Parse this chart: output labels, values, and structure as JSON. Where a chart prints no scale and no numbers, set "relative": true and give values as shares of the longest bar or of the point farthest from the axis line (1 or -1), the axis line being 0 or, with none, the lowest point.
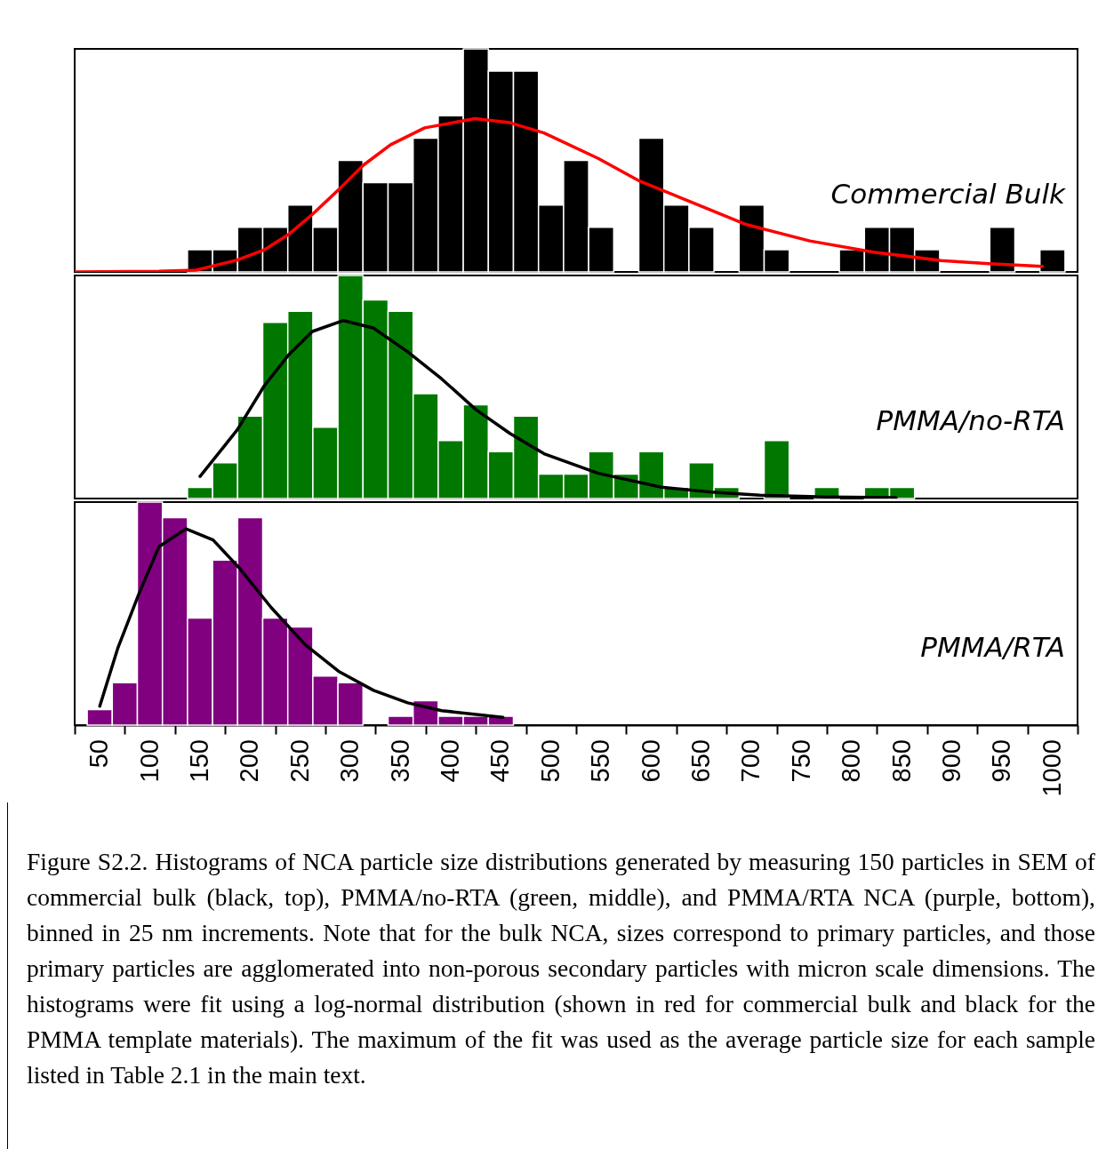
{
  "chart_data": [
    {
      "type": "histogram",
      "relative": true,
      "xlim": [
        25,
        1025
      ],
      "tick_labels": false,
      "bins": [
        37.5,
        62.5,
        87.5,
        112.5,
        137.5,
        162.5,
        187.5,
        212.5,
        237.5,
        262.5,
        287.5,
        312.5,
        337.5,
        362.5,
        387.5,
        412.5,
        437.5,
        462.5,
        487.5,
        512.5,
        537.5,
        562.5,
        587.5,
        612.5,
        637.5,
        662.5,
        687.5,
        712.5,
        737.5,
        762.5,
        787.5,
        812.5,
        837.5,
        862.5,
        887.5,
        912.5,
        937.5,
        962.5,
        987.5,
        1012.5
      ],
      "series": [
        {
          "name": "Commercial Bulk",
          "color": "#000000",
          "values": [
            0,
            0,
            0,
            0,
            0.1,
            0.1,
            0.2,
            0.2,
            0.3,
            0.2,
            0.5,
            0.4,
            0.4,
            0.6,
            0.7,
            1,
            0.9,
            0.9,
            0.3,
            0.5,
            0.2,
            0,
            0.6,
            0.3,
            0.2,
            0,
            0.3,
            0.1,
            0,
            0,
            0.1,
            0.2,
            0.2,
            0.1,
            0,
            0,
            0.2,
            0,
            0.1
          ]
        },
        {
          "type": "line",
          "color": "#ff0000",
          "x": [
            25,
            109,
            146,
            187,
            214,
            238,
            262,
            289,
            313,
            340,
            374,
            424,
            459,
            493,
            547,
            587,
            643,
            695,
            758,
            823,
            889,
            937,
            990
          ],
          "values": [
            0,
            0.003,
            0.008,
            0.053,
            0.099,
            0.167,
            0.258,
            0.372,
            0.479,
            0.57,
            0.646,
            0.687,
            0.669,
            0.623,
            0.509,
            0.41,
            0.307,
            0.212,
            0.139,
            0.088,
            0.051,
            0.037,
            0.025
          ]
        }
      ]
    },
    {
      "type": "histogram",
      "relative": true,
      "xlim": [
        25,
        1025
      ],
      "tick_labels": false,
      "bins": [
        37.5,
        62.5,
        87.5,
        112.5,
        137.5,
        162.5,
        187.5,
        212.5,
        237.5,
        262.5,
        287.5,
        312.5,
        337.5,
        362.5,
        387.5,
        412.5,
        437.5,
        462.5,
        487.5,
        512.5,
        537.5,
        562.5,
        587.5,
        612.5,
        637.5,
        662.5,
        687.5,
        712.5,
        737.5,
        762.5,
        787.5,
        812.5,
        837.5,
        862.5,
        887.5,
        912.5,
        937.5,
        962.5,
        987.5,
        1012.5
      ],
      "series": [
        {
          "name": "PMMA/no-RTA",
          "color": "#007800",
          "values": [
            0,
            0,
            0,
            0,
            0.05,
            0.16,
            0.37,
            0.79,
            0.84,
            0.32,
            1,
            0.89,
            0.84,
            0.47,
            0.26,
            0.42,
            0.21,
            0.37,
            0.11,
            0.11,
            0.21,
            0.11,
            0.21,
            0.05,
            0.16,
            0.05,
            0,
            0.26,
            0,
            0.05,
            0,
            0.05,
            0.05,
            0,
            0,
            0,
            0,
            0,
            0
          ]
        },
        {
          "type": "line",
          "color": "#000000",
          "x": [
            150,
            187,
            214,
            238,
            262,
            293,
            323,
            357,
            391,
            425,
            459,
            493,
            547,
            610,
            660,
            708,
            774,
            844
          ],
          "values": [
            0.099,
            0.307,
            0.505,
            0.642,
            0.749,
            0.798,
            0.764,
            0.658,
            0.536,
            0.399,
            0.292,
            0.201,
            0.113,
            0.051,
            0.029,
            0.015,
            0.007,
            0.004
          ]
        }
      ]
    },
    {
      "type": "histogram",
      "relative": true,
      "xlim": [
        25,
        1025
      ],
      "tick_labels": "x",
      "xticks": [
        {
          "value": 25,
          "label": null
        },
        50,
        {
          "value": 75,
          "label": null
        },
        100,
        {
          "value": 125,
          "label": null
        },
        150,
        {
          "value": 175,
          "label": null
        },
        200,
        {
          "value": 225,
          "label": null
        },
        250,
        {
          "value": 275,
          "label": null
        },
        300,
        {
          "value": 325,
          "label": null
        },
        350,
        {
          "value": 375,
          "label": null
        },
        400,
        {
          "value": 425,
          "label": null
        },
        450,
        {
          "value": 475,
          "label": null
        },
        500,
        {
          "value": 525,
          "label": null
        },
        550,
        {
          "value": 575,
          "label": null
        },
        600,
        {
          "value": 625,
          "label": null
        },
        650,
        {
          "value": 675,
          "label": null
        },
        700,
        {
          "value": 725,
          "label": null
        },
        750,
        {
          "value": 775,
          "label": null
        },
        800,
        {
          "value": 825,
          "label": null
        },
        850,
        {
          "value": 875,
          "label": null
        },
        900,
        {
          "value": 925,
          "label": null
        },
        950,
        {
          "value": 975,
          "label": null
        },
        1000,
        {
          "value": 1025,
          "label": null
        }
      ],
      "bins": [
        37.5,
        62.5,
        87.5,
        112.5,
        137.5,
        162.5,
        187.5,
        212.5,
        237.5,
        262.5,
        287.5,
        312.5,
        337.5,
        362.5,
        387.5,
        412.5,
        437.5,
        462.5,
        487.5,
        512.5,
        537.5,
        562.5,
        587.5,
        612.5,
        637.5,
        662.5,
        687.5,
        712.5,
        737.5,
        762.5,
        787.5,
        812.5,
        837.5,
        862.5,
        887.5,
        912.5,
        937.5,
        962.5,
        987.5,
        1012.5
      ],
      "series": [
        {
          "name": "PMMA/RTA",
          "color": "#800080",
          "values": [
            0.07,
            0.19,
            1,
            0.93,
            0.48,
            0.74,
            0.93,
            0.48,
            0.44,
            0.22,
            0.19,
            0,
            0.04,
            0.11,
            0.04,
            0.04,
            0.04,
            0,
            0,
            0,
            0,
            0,
            0,
            0,
            0,
            0,
            0,
            0,
            0,
            0,
            0,
            0,
            0,
            0,
            0,
            0,
            0,
            0,
            0
          ]
        },
        {
          "type": "line",
          "color": "#000000",
          "x": [
            50,
            68,
            89,
            109,
            136,
            163,
            190,
            221,
            255,
            289,
            323,
            357,
            391,
            452
          ],
          "values": [
            0.085,
            0.345,
            0.588,
            0.8,
            0.88,
            0.83,
            0.7,
            0.527,
            0.36,
            0.239,
            0.156,
            0.1,
            0.065,
            0.035
          ]
        }
      ],
      "annotations": [
        "Figure S2.2. Histograms of NCA particle size distributions generated by measuring 150 particles in SEM of commercial bulk (black, top), PMMA/no-RTA (green, middle), and PMMA/RTA NCA (purple, bottom), binned in 25 nm increments. Note that for the bulk NCA, sizes correspond to primary particles, and those primary particles are agglomerated into non-porous secondary particles with micron scale dimensions. The histograms were fit using a log-normal distribution (shown in red for commercial bulk and black for the PMMA template materials). The maximum of the fit was used as the average particle size for each sample listed in Table 2.1 in the main text."
      ]
    }
  ]
}
